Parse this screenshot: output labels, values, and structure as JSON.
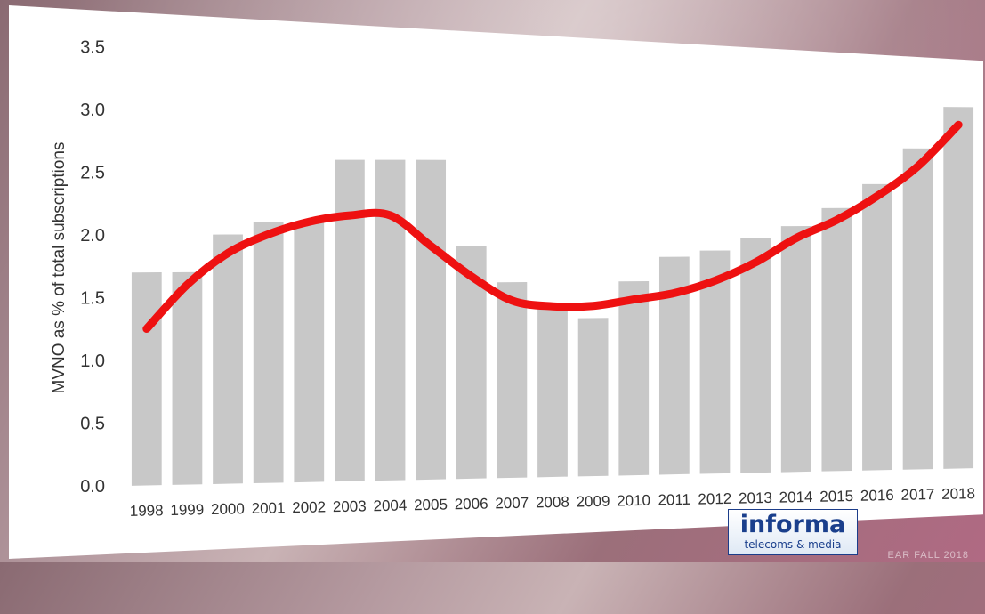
{
  "chart_data": {
    "type": "bar",
    "categories": [
      "1998",
      "1999",
      "2000",
      "2001",
      "2002",
      "2003",
      "2004",
      "2005",
      "2006",
      "2007",
      "2008",
      "2009",
      "2010",
      "2011",
      "2012",
      "2013",
      "2014",
      "2015",
      "2016",
      "2017",
      "2018"
    ],
    "values": [
      1.7,
      1.7,
      2.0,
      2.1,
      2.1,
      2.6,
      2.6,
      2.6,
      1.9,
      1.6,
      1.4,
      1.3,
      1.6,
      1.8,
      1.85,
      1.95,
      2.05,
      2.2,
      2.4,
      2.7,
      3.05
    ],
    "trend": [
      1.25,
      1.6,
      1.85,
      2.0,
      2.1,
      2.15,
      2.15,
      1.9,
      1.65,
      1.45,
      1.4,
      1.4,
      1.45,
      1.5,
      1.6,
      1.75,
      1.95,
      2.1,
      2.3,
      2.55,
      2.9
    ],
    "ylabel": "MVNO as % of total subscriptions",
    "xlabel": "",
    "ylim": [
      0,
      3.5
    ],
    "yticks": [
      "0.0",
      "0.5",
      "1.0",
      "1.5",
      "2.0",
      "2.5",
      "3.0",
      "3.5"
    ],
    "grid": false,
    "colors": {
      "bar": "#c8c8c8",
      "trend": "#ee1111"
    }
  },
  "logo": {
    "name": "informa",
    "sub": "telecoms & media"
  },
  "footer_note": "EAR FALL 2018"
}
